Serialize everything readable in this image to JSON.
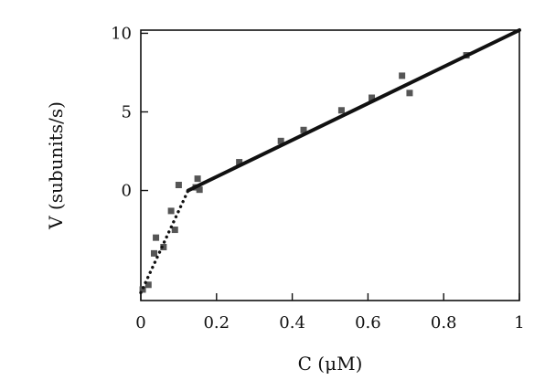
{
  "chart_data": {
    "type": "scatter",
    "title": "",
    "xlabel": "C (μM)",
    "ylabel": "V (subunits/s)",
    "xlim": [
      0,
      1
    ],
    "ylim": [
      -7,
      10.2
    ],
    "x_ticks": [
      0,
      0.2,
      0.4,
      0.6,
      0.8,
      1
    ],
    "x_tick_labels": [
      "0",
      "0.2",
      "0.4",
      "0.6",
      "0.8",
      "1"
    ],
    "y_ticks": [
      0,
      5,
      10
    ],
    "y_tick_labels": [
      "0",
      "5",
      "10"
    ],
    "grid": false,
    "legend": "none",
    "series": [
      {
        "kind": "points",
        "color": "#555555",
        "marker": "square",
        "x": [
          0.005,
          0.02,
          0.035,
          0.04,
          0.06,
          0.08,
          0.09,
          0.1,
          0.145,
          0.15,
          0.155,
          0.26,
          0.37,
          0.43,
          0.53,
          0.61,
          0.69,
          0.71,
          0.86
        ],
        "y": [
          -6.3,
          -6.0,
          -4.0,
          -3.0,
          -3.6,
          -1.3,
          -2.5,
          0.35,
          0.2,
          0.75,
          0.05,
          1.8,
          3.15,
          3.85,
          5.1,
          5.9,
          7.3,
          6.2,
          8.6
        ]
      },
      {
        "kind": "line",
        "style": "dotted",
        "color": "#111111",
        "x": [
          0,
          0.125
        ],
        "y": [
          -6.5,
          0
        ]
      },
      {
        "kind": "line",
        "style": "solid",
        "color": "#111111",
        "x": [
          0.125,
          1
        ],
        "y": [
          0,
          10.2
        ]
      }
    ]
  }
}
